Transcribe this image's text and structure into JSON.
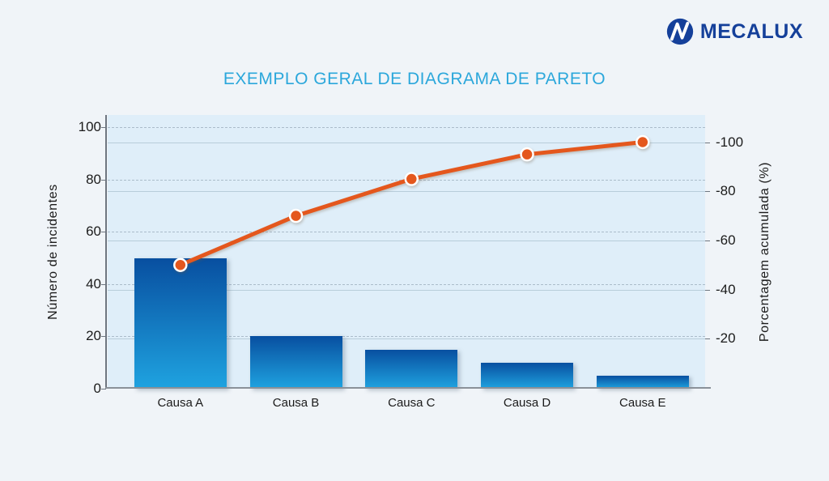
{
  "header": {
    "logo_text": "MECALUX"
  },
  "chart_data": {
    "type": "bar",
    "subtype": "pareto (bars + cumulative line)",
    "title": "EXEMPLO GERAL DE DIAGRAMA DE PARETO",
    "categories": [
      "Causa A",
      "Causa B",
      "Causa C",
      "Causa D",
      "Causa E"
    ],
    "series": [
      {
        "name": "Número de incidentes",
        "type": "bar",
        "axis": "left",
        "values": [
          50,
          20,
          15,
          10,
          5
        ]
      },
      {
        "name": "Porcentagem acumulada (%)",
        "type": "line",
        "axis": "right",
        "values": [
          50,
          70,
          85,
          95,
          100
        ]
      }
    ],
    "left_axis": {
      "label": "Número de incidentes",
      "tick_values": [
        0,
        20,
        40,
        60,
        80,
        100
      ],
      "tick_labels": [
        "0",
        "20",
        "40",
        "60",
        "80",
        "100"
      ],
      "range": [
        0,
        104
      ],
      "gridline_style": "dashed"
    },
    "right_axis": {
      "label": "Porcentagem acumulada (%)",
      "tick_values": [
        20,
        40,
        60,
        80,
        100
      ],
      "tick_labels": [
        "-20",
        "-40",
        "-60",
        "-80",
        "-100"
      ],
      "range": [
        0,
        110
      ],
      "gridline_style": "solid"
    },
    "legend": "none",
    "grid": "on"
  },
  "colors": {
    "page_bg": "#F0F4F8",
    "plot_bg": "#DFEEF9",
    "bar_top": "#084FA0",
    "bar_bottom": "#1FA3E0",
    "line": "#E4571D",
    "marker_fill": "#E4571D",
    "marker_ring": "#FFFFFF",
    "grid_dashed": "#A3B4C2",
    "grid_solid": "#B8CDDA",
    "axis_line": "#6E7680",
    "axis_line2": "#8A9199",
    "title": "#2BA7DB",
    "text": "#1B1B1B",
    "logo_blue": "#15409A"
  }
}
